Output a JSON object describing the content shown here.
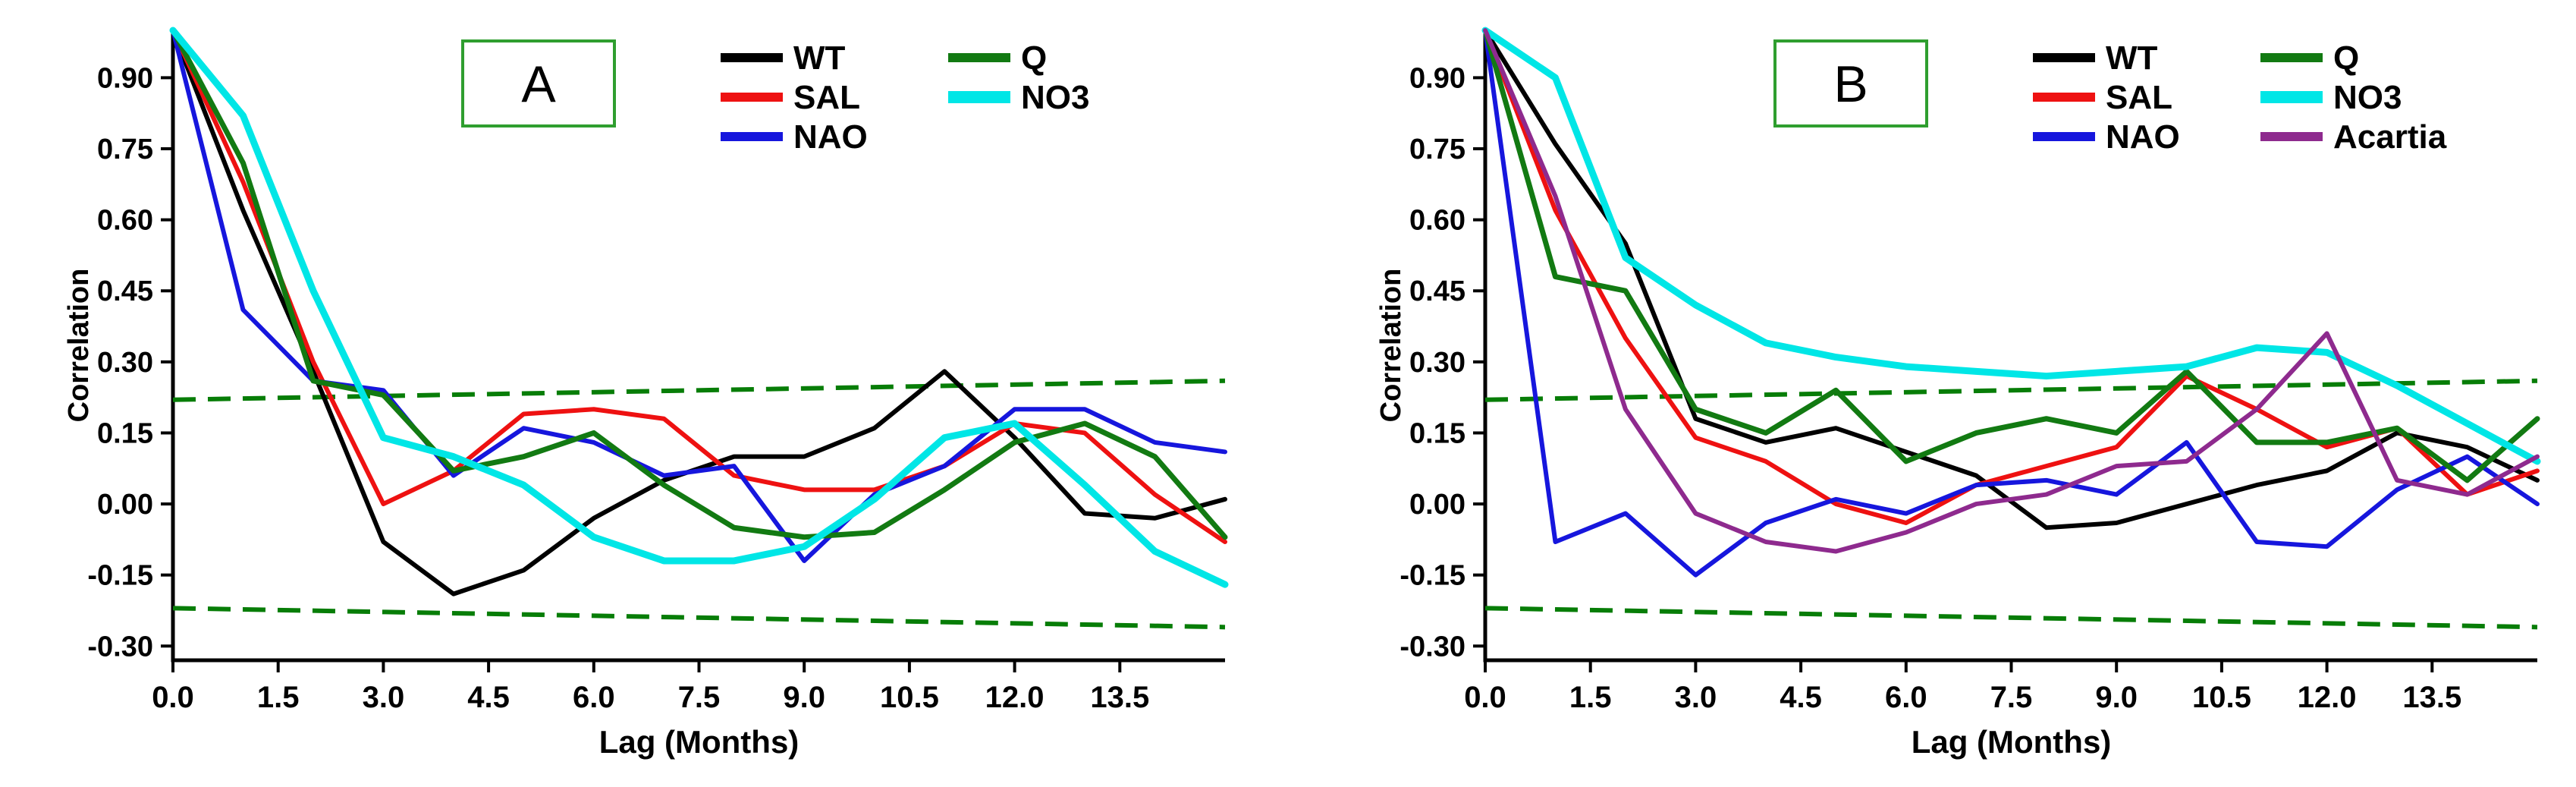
{
  "page": {
    "background": "#ffffff"
  },
  "colors": {
    "axis": "#000000",
    "significance": "#077d07",
    "panel_box_border": "#2f9e2f",
    "text": "#000000"
  },
  "chart_data": [
    {
      "type": "line",
      "panel_label": "A",
      "xlabel": "Lag (Months)",
      "ylabel": "Correlation",
      "xlim": [
        0,
        15
      ],
      "ylim": [
        -0.33,
        1.0
      ],
      "x": [
        0,
        1,
        2,
        3,
        4,
        5,
        6,
        7,
        8,
        9,
        10,
        11,
        12,
        13,
        14,
        15
      ],
      "xtick_values": [
        0,
        1.5,
        3,
        4.5,
        6,
        7.5,
        9,
        10.5,
        12,
        13.5
      ],
      "xtick_labels": [
        "0.0",
        "1.5",
        "3.0",
        "4.5",
        "6.0",
        "7.5",
        "9.0",
        "10.5",
        "12.0",
        "13.5"
      ],
      "ytick_values": [
        0.9,
        0.75,
        0.6,
        0.45,
        0.3,
        0.15,
        0.0,
        -0.15,
        -0.3
      ],
      "ytick_labels": [
        "0.90",
        "0.75",
        "0.60",
        "0.45",
        "0.30",
        "0.15",
        "0.00",
        "-0.15",
        "-0.30"
      ],
      "grid": false,
      "significance_lines": {
        "color": "#077d07",
        "style": "dashed",
        "upper": [
          0.22,
          0.26
        ],
        "lower": [
          -0.22,
          -0.26
        ]
      },
      "series": [
        {
          "name": "WT",
          "color": "#000000",
          "linewidth": 6,
          "values": [
            1.0,
            0.62,
            0.28,
            -0.08,
            -0.19,
            -0.14,
            -0.03,
            0.05,
            0.1,
            0.1,
            0.16,
            0.28,
            0.14,
            -0.02,
            -0.03,
            0.01
          ]
        },
        {
          "name": "SAL",
          "color": "#ee1111",
          "linewidth": 6,
          "values": [
            1.0,
            0.68,
            0.3,
            0.0,
            0.07,
            0.19,
            0.2,
            0.18,
            0.06,
            0.03,
            0.03,
            0.08,
            0.17,
            0.15,
            0.02,
            -0.08
          ]
        },
        {
          "name": "NAO",
          "color": "#1616dd",
          "linewidth": 6,
          "values": [
            1.0,
            0.41,
            0.26,
            0.24,
            0.06,
            0.16,
            0.13,
            0.06,
            0.08,
            -0.12,
            0.02,
            0.08,
            0.2,
            0.2,
            0.13,
            0.11
          ]
        },
        {
          "name": "Q",
          "color": "#127a12",
          "linewidth": 7,
          "values": [
            1.0,
            0.72,
            0.26,
            0.23,
            0.07,
            0.1,
            0.15,
            0.04,
            -0.05,
            -0.07,
            -0.06,
            0.03,
            0.13,
            0.17,
            0.1,
            -0.07
          ]
        },
        {
          "name": "NO3",
          "color": "#00e6e6",
          "linewidth": 9,
          "values": [
            1.0,
            0.82,
            0.45,
            0.14,
            0.1,
            0.04,
            -0.07,
            -0.12,
            -0.12,
            -0.09,
            0.01,
            0.14,
            0.17,
            0.04,
            -0.1,
            -0.17
          ]
        }
      ],
      "legend": {
        "position": "top-right-inside",
        "columns": [
          [
            "WT",
            "SAL",
            "NAO"
          ],
          [
            "Q",
            "NO3"
          ]
        ]
      }
    },
    {
      "type": "line",
      "panel_label": "B",
      "xlabel": "Lag (Months)",
      "ylabel": "Correlation",
      "xlim": [
        0,
        15
      ],
      "ylim": [
        -0.33,
        1.0
      ],
      "x": [
        0,
        1,
        2,
        3,
        4,
        5,
        6,
        7,
        8,
        9,
        10,
        11,
        12,
        13,
        14,
        15
      ],
      "xtick_values": [
        0,
        1.5,
        3,
        4.5,
        6,
        7.5,
        9,
        10.5,
        12,
        13.5
      ],
      "xtick_labels": [
        "0.0",
        "1.5",
        "3.0",
        "4.5",
        "6.0",
        "7.5",
        "9.0",
        "10.5",
        "12.0",
        "13.5"
      ],
      "ytick_values": [
        0.9,
        0.75,
        0.6,
        0.45,
        0.3,
        0.15,
        0.0,
        -0.15,
        -0.3
      ],
      "ytick_labels": [
        "0.90",
        "0.75",
        "0.60",
        "0.45",
        "0.30",
        "0.15",
        "0.00",
        "-0.15",
        "-0.30"
      ],
      "grid": false,
      "significance_lines": {
        "color": "#077d07",
        "style": "dashed",
        "upper": [
          0.22,
          0.26
        ],
        "lower": [
          -0.22,
          -0.26
        ]
      },
      "series": [
        {
          "name": "WT",
          "color": "#000000",
          "linewidth": 6,
          "values": [
            1.0,
            0.76,
            0.55,
            0.18,
            0.13,
            0.16,
            0.11,
            0.06,
            -0.05,
            -0.04,
            0.0,
            0.04,
            0.07,
            0.15,
            0.12,
            0.05
          ]
        },
        {
          "name": "SAL",
          "color": "#ee1111",
          "linewidth": 6,
          "values": [
            1.0,
            0.62,
            0.35,
            0.14,
            0.09,
            0.0,
            -0.04,
            0.04,
            0.08,
            0.12,
            0.27,
            0.2,
            0.12,
            0.16,
            0.02,
            0.07
          ]
        },
        {
          "name": "NAO",
          "color": "#1616dd",
          "linewidth": 6,
          "values": [
            1.0,
            -0.08,
            -0.02,
            -0.15,
            -0.04,
            0.01,
            -0.02,
            0.04,
            0.05,
            0.02,
            0.13,
            -0.08,
            -0.09,
            0.03,
            0.1,
            0.0
          ]
        },
        {
          "name": "Q",
          "color": "#127a12",
          "linewidth": 7,
          "values": [
            1.0,
            0.48,
            0.45,
            0.2,
            0.15,
            0.24,
            0.09,
            0.15,
            0.18,
            0.15,
            0.28,
            0.13,
            0.13,
            0.16,
            0.05,
            0.18
          ]
        },
        {
          "name": "NO3",
          "color": "#00e6e6",
          "linewidth": 9,
          "values": [
            1.0,
            0.9,
            0.52,
            0.42,
            0.34,
            0.31,
            0.29,
            0.28,
            0.27,
            0.28,
            0.29,
            0.33,
            0.32,
            0.25,
            0.17,
            0.09
          ]
        },
        {
          "name": "Acartia",
          "color": "#8e2a8e",
          "linewidth": 6,
          "values": [
            1.0,
            0.65,
            0.2,
            -0.02,
            -0.08,
            -0.1,
            -0.06,
            0.0,
            0.02,
            0.08,
            0.09,
            0.2,
            0.36,
            0.05,
            0.02,
            0.1
          ]
        }
      ],
      "legend": {
        "position": "top-right-inside",
        "columns": [
          [
            "WT",
            "SAL",
            "NAO"
          ],
          [
            "Q",
            "NO3",
            "Acartia"
          ]
        ]
      }
    }
  ]
}
